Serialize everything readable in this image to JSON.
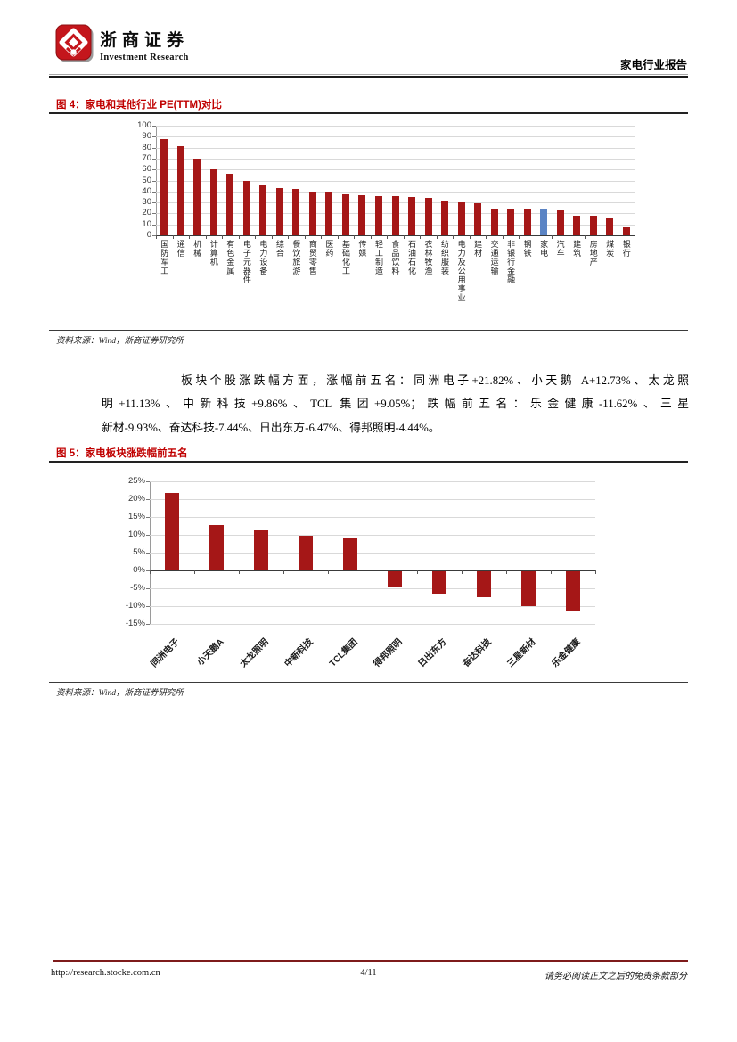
{
  "header": {
    "brand_cn": "浙商证券",
    "brand_en": "Investment Research",
    "report_label": "家电行业报告"
  },
  "figure4": {
    "title": "图 4：家电和其他行业 PE(TTM)对比",
    "source": "资料来源：Wind，浙商证券研究所"
  },
  "paragraph": {
    "lines": [
      "板块个股涨跌幅方面，涨幅前五名：同洲电子+21.82%、小天鹅 A+12.73%、太龙照",
      "明+11.13%、中新科技+9.86%、TCL 集团+9.05%；跌幅前五名：乐金健康-11.62%、三星",
      "新材-9.93%、奋达科技-7.44%、日出东方-6.47%、得邦照明-4.44%。"
    ]
  },
  "figure5": {
    "title": "图 5：家电板块涨跌幅前五名",
    "source": "资料来源：Wind，浙商证券研究所"
  },
  "footer": {
    "url": "http://research.stocke.com.cn",
    "page": "4/11",
    "disclaimer": "请务必阅读正文之后的免责条款部分"
  },
  "colors": {
    "bar_red": "#a51717",
    "bar_blue": "#5b84c4",
    "title_red": "#c00000",
    "logo_red": "#c4161c"
  },
  "icons": {
    "logo": "zheshang-securities-logo"
  },
  "chart_data": [
    {
      "type": "bar",
      "title": "家电和其他行业 PE(TTM)对比",
      "categories": [
        "国防军工",
        "通信",
        "机械",
        "计算机",
        "有色金属",
        "电子元器件",
        "电力设备",
        "综合",
        "餐饮旅游",
        "商贸零售",
        "医药",
        "基础化工",
        "传媒",
        "轻工制造",
        "食品饮料",
        "石油石化",
        "农林牧渔",
        "纺织服装",
        "电力及公用事业",
        "建材",
        "交通运输",
        "非银行金融",
        "钢铁",
        "家电",
        "汽车",
        "建筑",
        "房地产",
        "煤炭",
        "银行"
      ],
      "values": [
        88,
        81.5,
        70,
        60.5,
        56.5,
        49.5,
        46.5,
        43,
        42.5,
        39.5,
        39.5,
        37,
        36.5,
        36,
        35.5,
        35,
        34,
        31.5,
        30,
        29.5,
        24,
        23.5,
        23.5,
        23.5,
        23,
        18,
        17.5,
        15.5,
        7.5
      ],
      "highlight_index": 23,
      "highlight_category": "家电",
      "bar_color": "#a51717",
      "highlight_color": "#5b84c4",
      "unit": "",
      "ylim": [
        0,
        100
      ],
      "ytick_step": 10,
      "grid": true,
      "legend": "none",
      "xlabel": "",
      "ylabel": ""
    },
    {
      "type": "bar",
      "title": "家电板块涨跌幅前五名",
      "categories": [
        "同洲电子",
        "小天鹅A",
        "太龙照明",
        "中新科技",
        "TCL集团",
        "得邦照明",
        "日出东方",
        "奋达科技",
        "三星新材",
        "乐金健康"
      ],
      "values": [
        21.82,
        12.73,
        11.13,
        9.86,
        9.05,
        -4.44,
        -6.47,
        -7.44,
        -9.93,
        -11.62
      ],
      "bar_color": "#a51717",
      "unit": "%",
      "ylim": [
        -15,
        25
      ],
      "ytick_step": 5,
      "grid": true,
      "legend": "none",
      "xlabel": "",
      "ylabel": ""
    }
  ]
}
